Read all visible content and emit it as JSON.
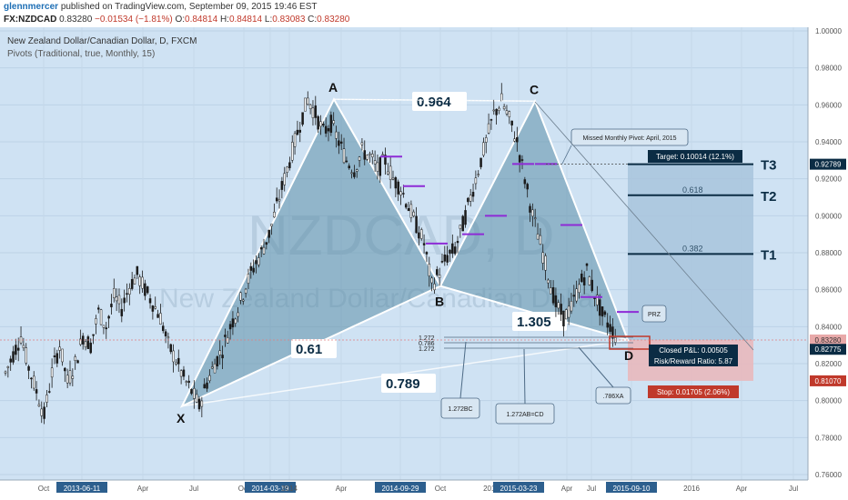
{
  "header": {
    "user": "glennmercer",
    "published": "published on TradingView.com, September 09, 2015 19:46 EST",
    "symbol": "FX:NZDCAD",
    "last": "0.83280",
    "change": "−0.01534 (−1.81%)",
    "o_label": "O:",
    "o": "0.84814",
    "h_label": "H:",
    "h": "0.84814",
    "l_label": "L:",
    "l": "0.83083",
    "c_label": "C:",
    "c": "0.83280"
  },
  "chart_data": {
    "type": "candlestick",
    "title": "New Zealand Dollar/Canadian Dollar, D, FXCM",
    "subtitle": "Pivots (Traditional, true, Monthly, 15)",
    "watermark": "NZDCAD, D",
    "watermark_sub": "New Zealand Dollar/Canadian Dollar",
    "ylim": [
      0.76,
      1.0
    ],
    "y_ticks": [
      "1.00000",
      "0.98000",
      "0.96000",
      "0.94000",
      "0.92000",
      "0.90000",
      "0.88000",
      "0.86000",
      "0.84000",
      "0.82000",
      "0.80000",
      "0.78000",
      "0.76000"
    ],
    "x_ticks": [
      "Oct",
      "2013-06-11",
      "Apr",
      "Jul",
      "Oct",
      "2014-03-19",
      "2014",
      "Apr",
      "2014-09-29",
      "Oct",
      "2015",
      "2015-03-23",
      "Apr",
      "Jul",
      "2015-09-10",
      "2016",
      "Apr",
      "Jul"
    ],
    "x_ticks_highlighted": [
      "2013-06-11",
      "2014-03-19",
      "2014-09-29",
      "2015-03-23",
      "2015-09-10"
    ],
    "price_path": [
      [
        0,
        0.815
      ],
      [
        3,
        0.825
      ],
      [
        6,
        0.835
      ],
      [
        9,
        0.818
      ],
      [
        12,
        0.805
      ],
      [
        15,
        0.792
      ],
      [
        18,
        0.815
      ],
      [
        21,
        0.83
      ],
      [
        24,
        0.81
      ],
      [
        27,
        0.82
      ],
      [
        30,
        0.835
      ],
      [
        33,
        0.83
      ],
      [
        36,
        0.848
      ],
      [
        39,
        0.84
      ],
      [
        42,
        0.856
      ],
      [
        45,
        0.85
      ],
      [
        48,
        0.862
      ],
      [
        51,
        0.868
      ],
      [
        54,
        0.86
      ],
      [
        57,
        0.853
      ],
      [
        60,
        0.845
      ],
      [
        63,
        0.83
      ],
      [
        66,
        0.822
      ],
      [
        69,
        0.812
      ],
      [
        72,
        0.805
      ],
      [
        75,
        0.797
      ],
      [
        78,
        0.81
      ],
      [
        81,
        0.82
      ],
      [
        84,
        0.828
      ],
      [
        87,
        0.84
      ],
      [
        90,
        0.85
      ],
      [
        93,
        0.862
      ],
      [
        96,
        0.872
      ],
      [
        99,
        0.88
      ],
      [
        102,
        0.89
      ],
      [
        105,
        0.905
      ],
      [
        108,
        0.92
      ],
      [
        111,
        0.935
      ],
      [
        114,
        0.95
      ],
      [
        117,
        0.963
      ],
      [
        120,
        0.955
      ],
      [
        123,
        0.945
      ],
      [
        126,
        0.95
      ],
      [
        129,
        0.94
      ],
      [
        132,
        0.93
      ],
      [
        135,
        0.925
      ],
      [
        138,
        0.935
      ],
      [
        141,
        0.932
      ],
      [
        144,
        0.925
      ],
      [
        147,
        0.93
      ],
      [
        150,
        0.92
      ],
      [
        153,
        0.915
      ],
      [
        156,
        0.905
      ],
      [
        159,
        0.895
      ],
      [
        162,
        0.885
      ],
      [
        165,
        0.862
      ],
      [
        168,
        0.87
      ],
      [
        171,
        0.878
      ],
      [
        174,
        0.882
      ],
      [
        177,
        0.895
      ],
      [
        180,
        0.91
      ],
      [
        183,
        0.925
      ],
      [
        186,
        0.94
      ],
      [
        189,
        0.955
      ],
      [
        192,
        0.962
      ],
      [
        195,
        0.952
      ],
      [
        198,
        0.94
      ],
      [
        201,
        0.92
      ],
      [
        204,
        0.9
      ],
      [
        207,
        0.885
      ],
      [
        210,
        0.868
      ],
      [
        213,
        0.852
      ],
      [
        216,
        0.845
      ],
      [
        219,
        0.85
      ],
      [
        222,
        0.862
      ],
      [
        225,
        0.87
      ],
      [
        228,
        0.858
      ],
      [
        231,
        0.846
      ],
      [
        234,
        0.84
      ],
      [
        237,
        0.8328
      ]
    ],
    "pattern": {
      "X": 0.797,
      "A": 0.963,
      "B": 0.862,
      "C": 0.962,
      "D": 0.8328,
      "ratios": {
        "AB_XA": "0.61",
        "BC_AB": "0.964",
        "CD_BC": "1.305",
        "XD": "0.789"
      }
    },
    "point_labels": [
      "X",
      "A",
      "B",
      "C",
      "D"
    ],
    "fib_levels": [
      "1.272",
      "0.786",
      "1.272"
    ],
    "callouts": {
      "pivot": "Missed Monthly Pivot: April, 2015",
      "prz": "PRZ",
      "bc": "1.272BC",
      "abcd": "1.272AB=CD",
      "xa": ".786XA"
    },
    "trade": {
      "entry": 0.8328,
      "target": 0.9279,
      "stop": 0.8107,
      "target_label": "Target: 0.10014 (12.1%)",
      "stop_label": "Stop: 0.01705 (2.06%)",
      "closed_label": "Closed P&L: 0.00505",
      "rr_label": "Risk/Reward Ratio: 5.87",
      "t1": 0.8793,
      "t2": 0.9111,
      "t3": 0.9279,
      "t1_label": "T1",
      "t2_label": "T2",
      "t3_label": "T3",
      "fib_382": "0.382",
      "fib_618": "0.618"
    },
    "price_tags": [
      {
        "text": "0.92789",
        "value": 0.92789,
        "color": "#0b2c44"
      },
      {
        "text": "0.83280",
        "value": 0.8328,
        "color": "#e8a9a9"
      },
      {
        "text": "0.82775",
        "value": 0.82775,
        "color": "#0b2c44"
      },
      {
        "text": "0.81070",
        "value": 0.8107,
        "color": "#c0392b"
      }
    ],
    "colors": {
      "background": "#cfe2f3",
      "pattern_fill": "#5e8fa8",
      "target_zone": "#a8c4dc",
      "stop_zone": "#e8b9bd",
      "pivot": "#8e2bd6",
      "dark_label": "#0b2c44"
    }
  }
}
